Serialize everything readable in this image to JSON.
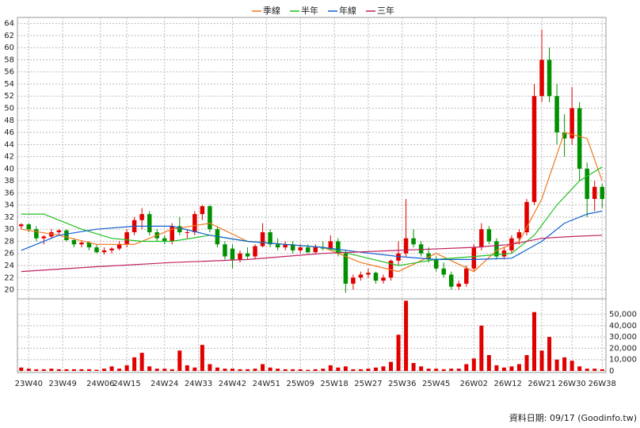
{
  "chart_data": {
    "type": "candlestick",
    "legend_position": "top",
    "source": "資料日期: 09/17 (Goodinfo.tw)",
    "up_color": "#e00000",
    "down_color": "#009000",
    "volume_color": "#e00000",
    "ylim": [
      18.5,
      65
    ],
    "yticks": [
      20,
      22,
      24,
      26,
      28,
      30,
      32,
      34,
      36,
      38,
      40,
      42,
      44,
      46,
      48,
      50,
      52,
      54,
      56,
      58,
      60,
      62,
      64
    ],
    "volume_ylim": [
      0,
      63000
    ],
    "volume_yticks": [
      0,
      {
        "value": 10000,
        "label": "10,000"
      },
      {
        "value": 20000,
        "label": "20,000"
      },
      {
        "value": 30000,
        "label": "30,000"
      },
      {
        "value": 40000,
        "label": "40,000"
      },
      {
        "value": 50000,
        "label": "50,000"
      }
    ],
    "xlim": [
      -0.5,
      77.5
    ],
    "xticks": [
      {
        "value": 1,
        "label": "23W40"
      },
      {
        "value": 5.5,
        "label": "23W49"
      },
      {
        "value": 10.5,
        "label": "24W06"
      },
      {
        "value": 14,
        "label": "24W15"
      },
      {
        "value": 19,
        "label": "24W24"
      },
      {
        "value": 23.5,
        "label": "24W33"
      },
      {
        "value": 28,
        "label": "24W42"
      },
      {
        "value": 32.5,
        "label": "24W51"
      },
      {
        "value": 37,
        "label": "25W09"
      },
      {
        "value": 41.5,
        "label": "25W18"
      },
      {
        "value": 46,
        "label": "25W27"
      },
      {
        "value": 50.5,
        "label": "25W36"
      },
      {
        "value": 55,
        "label": "25W45"
      },
      {
        "value": 60,
        "label": "26W02"
      },
      {
        "value": 64.5,
        "label": "26W12"
      },
      {
        "value": 69,
        "label": "26W21"
      },
      {
        "value": 73,
        "label": "26W30"
      },
      {
        "value": 77,
        "label": "26W38"
      }
    ],
    "grid": true,
    "candles": [
      [
        30.5,
        31,
        30,
        30.8
      ],
      [
        30.8,
        31,
        29.5,
        30
      ],
      [
        30,
        30.5,
        28,
        28.5
      ],
      [
        28.5,
        29,
        27.5,
        28.8
      ],
      [
        28.8,
        30,
        28.5,
        29.5
      ],
      [
        29.5,
        30,
        29,
        29.8
      ],
      [
        29.8,
        30,
        28,
        28.2
      ],
      [
        28.2,
        28.5,
        27,
        27.5
      ],
      [
        27.5,
        28,
        27,
        27.8
      ],
      [
        27.8,
        28,
        26.5,
        27
      ],
      [
        27,
        27.5,
        26,
        26.2
      ],
      [
        26.2,
        27,
        25.8,
        26.5
      ],
      [
        26.5,
        27,
        26,
        26.8
      ],
      [
        26.8,
        28,
        26.5,
        27.5
      ],
      [
        27.5,
        30,
        27,
        29.5
      ],
      [
        29.5,
        32,
        29,
        31.5
      ],
      [
        31.5,
        33.5,
        30,
        32.5
      ],
      [
        32.5,
        33,
        29,
        29.5
      ],
      [
        29.5,
        30,
        28,
        28.5
      ],
      [
        28.5,
        29,
        27.5,
        28
      ],
      [
        28,
        31,
        27.5,
        30.5
      ],
      [
        30.5,
        32,
        29,
        29.5
      ],
      [
        29.5,
        30,
        28.5,
        29.5
      ],
      [
        29.5,
        33,
        29,
        32.5
      ],
      [
        32.5,
        34,
        31.5,
        33.8
      ],
      [
        33.8,
        34,
        29.5,
        30
      ],
      [
        30,
        30.5,
        27,
        27.5
      ],
      [
        27.5,
        28,
        25,
        25.5
      ],
      [
        26.8,
        27.5,
        23.5,
        25
      ],
      [
        25,
        26.5,
        24.5,
        26
      ],
      [
        26,
        27,
        25,
        25.5
      ],
      [
        25.5,
        27.5,
        25,
        27.2
      ],
      [
        27.2,
        31,
        27,
        29.5
      ],
      [
        29.5,
        30,
        27,
        27.5
      ],
      [
        27.5,
        28.5,
        26.5,
        27
      ],
      [
        27,
        28,
        26.5,
        27.5
      ],
      [
        27.5,
        28,
        26,
        26.5
      ],
      [
        26.5,
        27.5,
        26,
        27
      ],
      [
        27,
        27.5,
        26,
        26.2
      ],
      [
        26.2,
        27.5,
        26,
        27
      ],
      [
        27,
        28,
        26.5,
        26.8
      ],
      [
        26.8,
        29,
        26.5,
        28
      ],
      [
        28,
        28.5,
        25.5,
        26
      ],
      [
        26,
        26.5,
        19.5,
        21
      ],
      [
        21,
        22.5,
        20,
        22
      ],
      [
        22,
        23,
        21.5,
        22.5
      ],
      [
        22.5,
        23.5,
        22,
        22.8
      ],
      [
        22.8,
        23,
        21,
        21.5
      ],
      [
        21.5,
        22.5,
        21,
        22
      ],
      [
        22,
        25,
        21.5,
        24.8
      ],
      [
        24.8,
        28,
        24,
        26
      ],
      [
        26,
        35,
        25.5,
        28.5
      ],
      [
        28.5,
        30,
        27,
        27.5
      ],
      [
        27.5,
        28,
        25.5,
        26
      ],
      [
        26,
        27,
        24.5,
        25
      ],
      [
        25,
        25.5,
        23,
        23.5
      ],
      [
        23.5,
        24.5,
        22,
        22.5
      ],
      [
        22.5,
        23,
        20,
        20.5
      ],
      [
        20.5,
        21.5,
        20,
        21
      ],
      [
        21,
        24,
        20.5,
        23.5
      ],
      [
        23.5,
        27.5,
        23,
        27
      ],
      [
        27,
        31,
        26.5,
        30
      ],
      [
        30,
        30.5,
        27.5,
        28
      ],
      [
        28,
        28.5,
        25,
        25.5
      ],
      [
        25.5,
        27,
        25,
        26.5
      ],
      [
        26.5,
        29,
        26,
        28.5
      ],
      [
        28.5,
        30,
        27.5,
        29.5
      ],
      [
        29.5,
        35,
        29,
        34.5
      ],
      [
        34.5,
        54,
        34,
        52
      ],
      [
        52,
        63,
        51,
        58
      ],
      [
        58,
        60,
        51,
        52
      ],
      [
        52,
        54,
        44,
        46
      ],
      [
        46,
        49,
        42,
        45
      ],
      [
        45,
        53.5,
        44,
        50
      ],
      [
        50,
        51,
        38,
        40
      ],
      [
        40,
        41,
        32,
        35
      ],
      [
        35,
        38,
        33,
        37
      ],
      [
        37,
        37.5,
        33.5,
        35
      ]
    ],
    "volume": [
      3000,
      2000,
      1500,
      1500,
      2000,
      1500,
      1500,
      1500,
      1500,
      1500,
      1000,
      2000,
      4000,
      2000,
      5000,
      12000,
      16000,
      4000,
      2000,
      2000,
      1500,
      18000,
      5000,
      3000,
      23000,
      6000,
      3000,
      2000,
      2000,
      1500,
      1500,
      2000,
      6000,
      3000,
      2000,
      1500,
      1500,
      1500,
      1000,
      1500,
      2000,
      5000,
      3000,
      4000,
      1500,
      1500,
      2000,
      3000,
      4000,
      8000,
      32000,
      62000,
      7000,
      4000,
      2000,
      2000,
      1500,
      2000,
      2000,
      6000,
      11000,
      40000,
      14000,
      5000,
      3000,
      4000,
      6000,
      14000,
      52000,
      18000,
      30000,
      10000,
      12000,
      9000,
      4000,
      2000,
      2000,
      1500
    ],
    "series": [
      {
        "name": "季線",
        "color": "#f07820",
        "x": [
          0,
          5,
          10,
          15,
          20,
          25,
          30,
          35,
          40,
          45,
          50,
          55,
          60,
          63,
          66,
          69,
          72,
          75,
          77
        ],
        "values": [
          30,
          29,
          27.5,
          27.5,
          30,
          31,
          28,
          27.5,
          27,
          24.5,
          23,
          26,
          23,
          26.5,
          28,
          35,
          46,
          45,
          38
        ]
      },
      {
        "name": "半年",
        "color": "#20c020",
        "x": [
          0,
          3,
          8,
          12,
          16,
          20,
          25,
          30,
          35,
          40,
          45,
          50,
          55,
          60,
          65,
          68,
          71,
          74,
          77
        ],
        "values": [
          32.5,
          32.5,
          30,
          28.5,
          28,
          28,
          29,
          28,
          27.5,
          27,
          25.5,
          24,
          25,
          25.5,
          26,
          29,
          34,
          38,
          40.3
        ]
      },
      {
        "name": "年線",
        "color": "#1060d0",
        "x": [
          0,
          5,
          10,
          15,
          20,
          25,
          30,
          35,
          40,
          45,
          50,
          55,
          60,
          65,
          69,
          72,
          75,
          77
        ],
        "values": [
          26.5,
          29,
          30,
          30.5,
          30.5,
          29,
          28,
          27.5,
          27,
          26.2,
          25.5,
          25,
          25,
          25.2,
          28,
          31,
          32.5,
          33
        ]
      },
      {
        "name": "三年",
        "color": "#c02060",
        "x": [
          0,
          10,
          20,
          30,
          40,
          50,
          60,
          65,
          69,
          73,
          77
        ],
        "values": [
          23,
          23.8,
          24.5,
          25,
          26,
          26.5,
          27,
          27.5,
          28.5,
          28.8,
          29
        ]
      }
    ]
  }
}
